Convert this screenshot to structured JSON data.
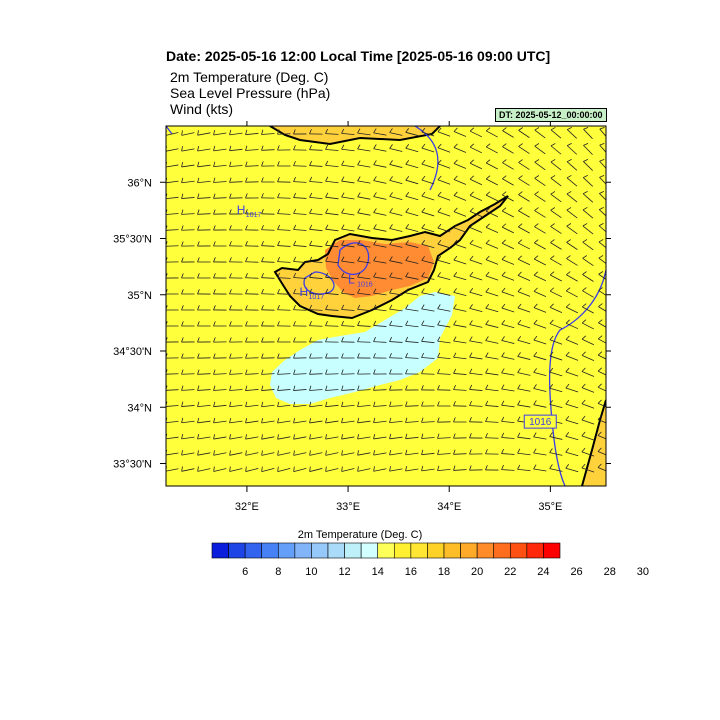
{
  "header": {
    "title": "Date: 2025-05-16  12:00 Local Time [2025-05-16  09:00 UTC]",
    "fields": [
      "2m Temperature (Deg. C)",
      "Sea Level Pressure   (hPa)",
      "Wind   (kts)"
    ],
    "dt_label": "DT: 2025-05-12_00:00:00"
  },
  "map": {
    "lon_range": [
      31.2,
      35.55
    ],
    "lat_range": [
      33.3,
      36.5
    ],
    "lon_ticks": [
      {
        "value": 32,
        "label": "32°E"
      },
      {
        "value": 33,
        "label": "33°E"
      },
      {
        "value": 34,
        "label": "34°E"
      },
      {
        "value": 35,
        "label": "35°E"
      }
    ],
    "lat_ticks": [
      {
        "value": 36,
        "label": "36°N"
      },
      {
        "value": 35.5,
        "label": "35°30'N"
      },
      {
        "value": 35,
        "label": "35°N"
      },
      {
        "value": 34.5,
        "label": "34°30'N"
      },
      {
        "value": 34,
        "label": "34°N"
      },
      {
        "value": 33.5,
        "label": "33°30'N"
      }
    ],
    "pressure_labels": [
      {
        "text": "H",
        "sub": "1017",
        "lon": 31.9,
        "lat": 35.72
      },
      {
        "text": "H",
        "sub": "1017",
        "lon": 32.52,
        "lat": 34.99
      },
      {
        "text": "L",
        "sub": "1016",
        "lon": 33.0,
        "lat": 35.1
      },
      {
        "text": "1016",
        "sub": "",
        "lon": 34.9,
        "lat": 33.85
      }
    ],
    "colors": {
      "ocean": "#ffff3c",
      "warm": "#ffd23c",
      "hot": "#ff8c32",
      "cool": "#c8ffff",
      "isobar": "#3c3ce6",
      "coast": "#000000"
    }
  },
  "colorbar": {
    "title": "2m Temperature (Deg. C)",
    "colors": [
      "#0a1edc",
      "#1e46e6",
      "#3264f0",
      "#4682f5",
      "#64a0fa",
      "#82b4fa",
      "#96c8fa",
      "#aadcfa",
      "#bef0fa",
      "#d2ffff",
      "#ffff5a",
      "#fff032",
      "#ffe632",
      "#ffd228",
      "#ffbe28",
      "#ffaa28",
      "#ff8c28",
      "#ff6e1e",
      "#ff5014",
      "#ff280a",
      "#ff0000"
    ],
    "labels": [
      "6",
      "8",
      "10",
      "12",
      "14",
      "16",
      "18",
      "20",
      "22",
      "24",
      "26",
      "28",
      "30"
    ]
  }
}
